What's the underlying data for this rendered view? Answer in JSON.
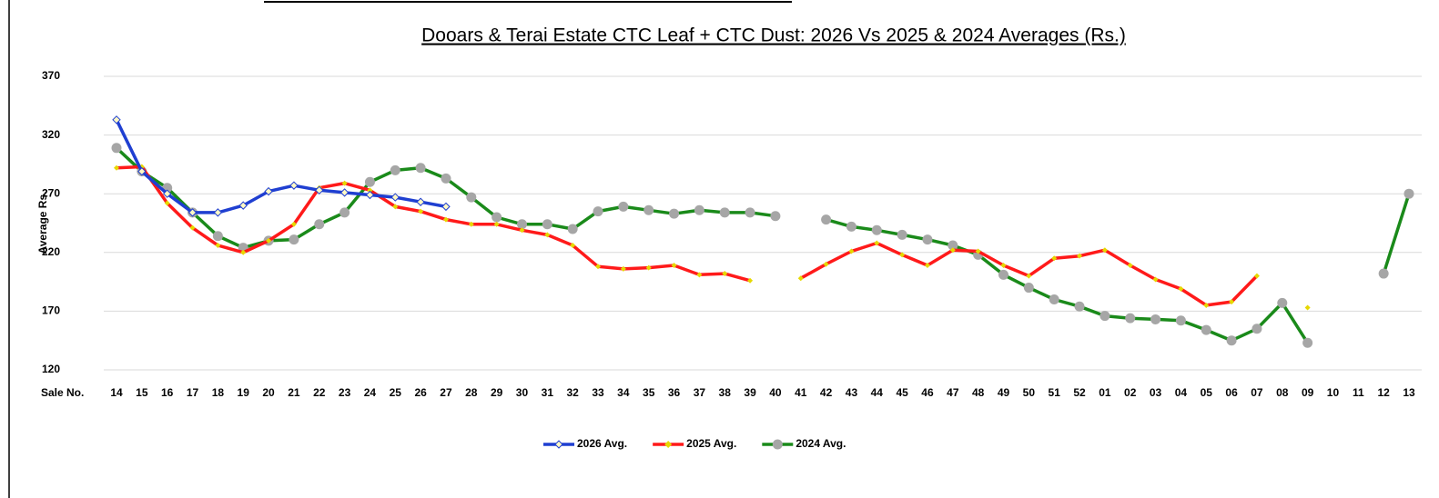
{
  "chart_data": {
    "type": "line",
    "title": "Dooars & Terai Estate CTC Leaf + CTC Dust: 2026 Vs 2025 & 2024 Averages (Rs.)",
    "y_label": "Average Rs.",
    "x_label": "Sale No.",
    "categories": [
      "14",
      "15",
      "16",
      "17",
      "18",
      "19",
      "20",
      "21",
      "22",
      "23",
      "24",
      "25",
      "26",
      "27",
      "28",
      "29",
      "30",
      "31",
      "32",
      "33",
      "34",
      "35",
      "36",
      "37",
      "38",
      "39",
      "40",
      "41",
      "42",
      "43",
      "44",
      "45",
      "46",
      "47",
      "48",
      "49",
      "50",
      "51",
      "52",
      "01",
      "02",
      "03",
      "04",
      "05",
      "06",
      "07",
      "08",
      "09",
      "10",
      "11",
      "12",
      "13"
    ],
    "ylim": [
      120,
      370
    ],
    "yticks": [
      120,
      170,
      220,
      270,
      320,
      370
    ],
    "grid": true,
    "legend": "bottom",
    "series": [
      {
        "name": "2026 Avg.",
        "color": "#1f3fd1",
        "marker_color": "#fff9c4",
        "values": [
          333,
          289,
          270,
          254,
          254,
          260,
          272,
          277,
          273,
          271,
          269,
          267,
          263,
          259,
          null,
          null,
          null,
          null,
          null,
          null,
          null,
          null,
          null,
          null,
          null,
          null,
          null,
          null,
          null,
          null,
          null,
          null,
          null,
          null,
          null,
          null,
          null,
          null,
          null,
          null,
          null,
          null,
          null,
          null,
          null,
          null,
          null,
          null,
          null,
          null,
          null,
          null
        ]
      },
      {
        "name": "2025 Avg.",
        "color": "#ff1a1a",
        "marker_color": "#e6d800",
        "values": [
          292,
          293,
          262,
          241,
          226,
          220,
          230,
          244,
          275,
          279,
          273,
          259,
          255,
          248,
          244,
          244,
          239,
          235,
          226,
          208,
          206,
          207,
          209,
          201,
          202,
          196,
          null,
          198,
          210,
          221,
          228,
          218,
          209,
          222,
          221,
          209,
          200,
          215,
          217,
          222,
          209,
          197,
          189,
          175,
          178,
          200,
          null,
          173,
          null,
          null,
          null,
          null
        ]
      },
      {
        "name": "2024 Avg.",
        "color": "#1a8a1a",
        "marker_color": "#a6a6a6",
        "values": [
          309,
          289,
          275,
          254,
          234,
          224,
          230,
          231,
          244,
          254,
          280,
          290,
          292,
          283,
          267,
          250,
          244,
          244,
          240,
          255,
          259,
          256,
          253,
          256,
          254,
          254,
          251,
          null,
          248,
          242,
          239,
          235,
          231,
          226,
          218,
          201,
          190,
          180,
          174,
          166,
          164,
          163,
          162,
          154,
          145,
          155,
          177,
          143,
          null,
          null,
          202,
          270
        ]
      }
    ]
  }
}
